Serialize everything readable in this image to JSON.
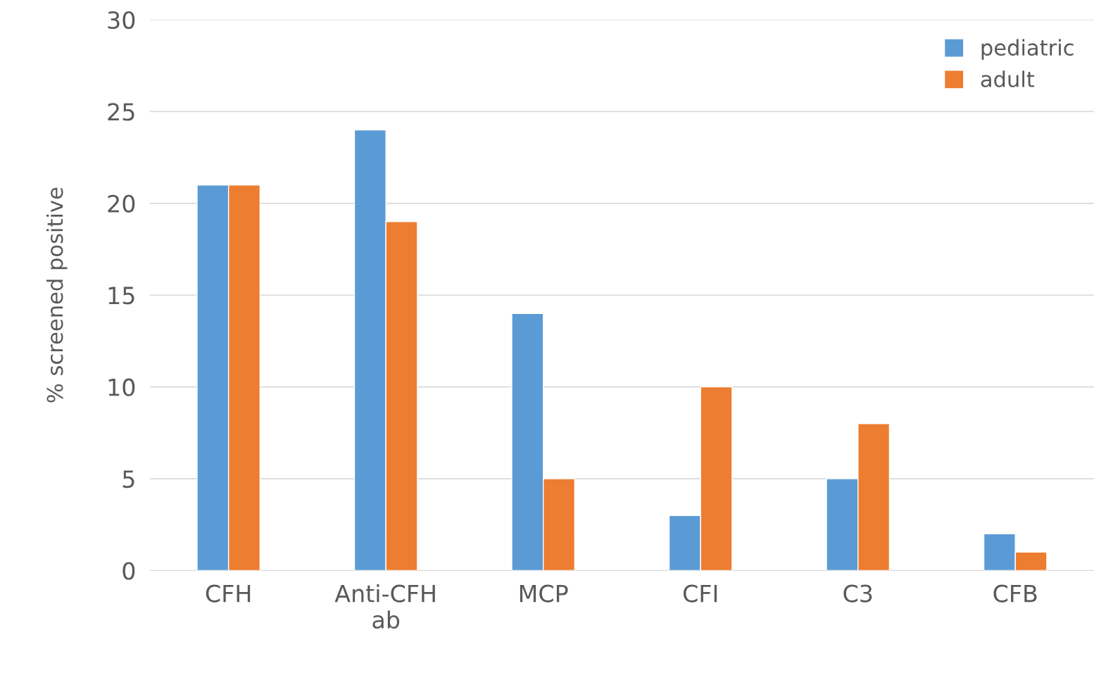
{
  "chart_data": {
    "type": "bar",
    "ylabel": "% screened positive",
    "categories": [
      "CFH",
      "Anti-CFH\nab",
      "MCP",
      "CFI",
      "C3",
      "CFB"
    ],
    "series": [
      {
        "name": "pediatric",
        "color": "#5b9bd5",
        "values": [
          21,
          24,
          14,
          3,
          5,
          2
        ]
      },
      {
        "name": "adult",
        "color": "#ed7d31",
        "values": [
          21,
          19,
          5,
          10,
          8,
          1
        ]
      }
    ],
    "ylim": [
      0,
      30
    ],
    "yticks": [
      0,
      5,
      10,
      15,
      20,
      25,
      30
    ],
    "grid": "y",
    "legend": "top right"
  }
}
